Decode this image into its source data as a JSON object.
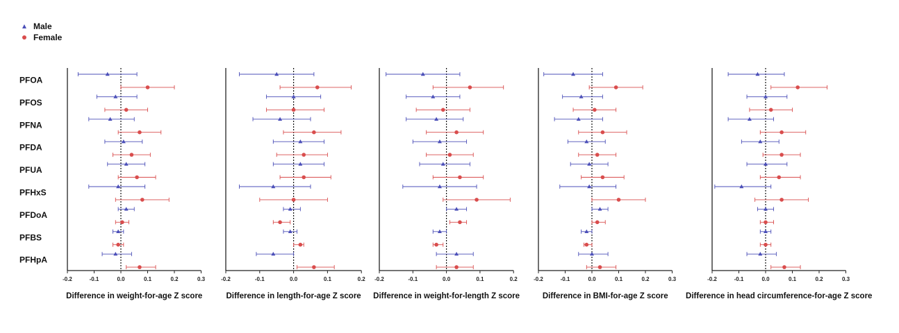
{
  "legend": {
    "male_label": "Male",
    "female_label": "Female"
  },
  "colors": {
    "male": "#4b4fb8",
    "female": "#d94d4d",
    "axis": "#222222"
  },
  "chart_data": [
    {
      "type": "forest",
      "xlabel": "Difference in weight-for-age Z score",
      "xlim": [
        -0.2,
        0.3
      ],
      "xticks": [
        "-0.2",
        "-0.1",
        "0.0",
        "0.1",
        "0.2",
        "0.3"
      ],
      "categories": [
        "PFOA",
        "PFOS",
        "PFNA",
        "PFDA",
        "PFUA",
        "PFHxS",
        "PFDoA",
        "PFBS",
        "PFHpA"
      ],
      "series": [
        {
          "name": "Male",
          "marker": "triangle",
          "est": [
            -0.05,
            -0.02,
            -0.04,
            0.01,
            0.02,
            -0.01,
            0.02,
            -0.01,
            -0.02
          ],
          "lo": [
            -0.16,
            -0.09,
            -0.12,
            -0.06,
            -0.05,
            -0.12,
            -0.01,
            -0.03,
            -0.07
          ],
          "hi": [
            0.06,
            0.06,
            0.05,
            0.08,
            0.09,
            0.09,
            0.05,
            0.01,
            0.04
          ]
        },
        {
          "name": "Female",
          "marker": "circle",
          "est": [
            0.1,
            0.02,
            0.07,
            0.04,
            0.06,
            0.08,
            0.005,
            -0.01,
            0.07
          ],
          "lo": [
            0.0,
            -0.06,
            -0.01,
            -0.03,
            -0.01,
            -0.02,
            -0.02,
            -0.03,
            0.02
          ],
          "hi": [
            0.2,
            0.1,
            0.15,
            0.11,
            0.13,
            0.18,
            0.03,
            0.01,
            0.13
          ]
        }
      ]
    },
    {
      "type": "forest",
      "xlabel": "Difference in length-for-age Z score",
      "xlim": [
        -0.2,
        0.2
      ],
      "xticks": [
        "-0.2",
        "-0.1",
        "0.0",
        "0.1",
        "0.2"
      ],
      "series": [
        {
          "name": "Male",
          "marker": "triangle",
          "est": [
            -0.05,
            0.0,
            -0.04,
            0.02,
            0.02,
            -0.06,
            -0.01,
            -0.01,
            -0.06
          ],
          "lo": [
            -0.16,
            -0.08,
            -0.12,
            -0.06,
            -0.06,
            -0.16,
            -0.03,
            -0.03,
            -0.11
          ],
          "hi": [
            0.06,
            0.08,
            0.05,
            0.09,
            0.09,
            0.05,
            0.02,
            0.01,
            0.0
          ]
        },
        {
          "name": "Female",
          "marker": "circle",
          "est": [
            0.07,
            0.0,
            0.06,
            0.03,
            0.03,
            0.0,
            -0.04,
            0.02,
            0.06
          ],
          "lo": [
            -0.04,
            -0.08,
            -0.03,
            -0.05,
            -0.04,
            -0.1,
            -0.06,
            0.0,
            0.01
          ],
          "hi": [
            0.17,
            0.09,
            0.14,
            0.1,
            0.11,
            0.1,
            -0.01,
            0.03,
            0.12
          ]
        }
      ]
    },
    {
      "type": "forest",
      "xlabel": "Difference in weight-for-length Z score",
      "xlim": [
        -0.2,
        0.2
      ],
      "xticks": [
        "-0.2",
        "-0.1",
        "0.0",
        "0.1",
        "0.2"
      ],
      "series": [
        {
          "name": "Male",
          "marker": "triangle",
          "est": [
            -0.07,
            -0.04,
            -0.03,
            -0.02,
            -0.01,
            -0.02,
            0.03,
            -0.02,
            0.03
          ],
          "lo": [
            -0.18,
            -0.12,
            -0.12,
            -0.1,
            -0.08,
            -0.13,
            0.0,
            -0.04,
            -0.03
          ],
          "hi": [
            0.04,
            0.04,
            0.05,
            0.06,
            0.07,
            0.09,
            0.06,
            0.0,
            0.08
          ]
        },
        {
          "name": "Female",
          "marker": "circle",
          "est": [
            0.07,
            -0.01,
            0.03,
            0.01,
            0.04,
            0.09,
            0.04,
            -0.03,
            0.03
          ],
          "lo": [
            -0.04,
            -0.09,
            -0.06,
            -0.06,
            -0.04,
            -0.01,
            0.01,
            -0.04,
            -0.03
          ],
          "hi": [
            0.17,
            0.07,
            0.11,
            0.08,
            0.11,
            0.19,
            0.06,
            -0.01,
            0.08
          ]
        }
      ]
    },
    {
      "type": "forest",
      "xlabel": "Difference in BMI-for-age Z score",
      "xlim": [
        -0.2,
        0.3
      ],
      "xticks": [
        "-0.2",
        "-0.1",
        "0.0",
        "0.1",
        "0.2",
        "0.3"
      ],
      "series": [
        {
          "name": "Male",
          "marker": "triangle",
          "est": [
            -0.07,
            -0.04,
            -0.05,
            -0.02,
            -0.01,
            -0.01,
            0.03,
            -0.02,
            0.0
          ],
          "lo": [
            -0.18,
            -0.11,
            -0.14,
            -0.09,
            -0.08,
            -0.12,
            0.0,
            -0.04,
            -0.05
          ],
          "hi": [
            0.04,
            0.04,
            0.04,
            0.05,
            0.06,
            0.09,
            0.06,
            0.0,
            0.06
          ]
        },
        {
          "name": "Female",
          "marker": "circle",
          "est": [
            0.09,
            0.01,
            0.04,
            0.02,
            0.04,
            0.1,
            0.02,
            -0.02,
            0.03
          ],
          "lo": [
            -0.01,
            -0.07,
            -0.05,
            -0.05,
            -0.04,
            0.0,
            0.0,
            -0.03,
            -0.02
          ],
          "hi": [
            0.19,
            0.09,
            0.13,
            0.09,
            0.12,
            0.2,
            0.05,
            0.0,
            0.09
          ]
        }
      ]
    },
    {
      "type": "forest",
      "xlabel": "Difference in head circumference-for-age Z score",
      "xlim": [
        -0.2,
        0.3
      ],
      "xticks": [
        "-0.2",
        "-0.1",
        "0.0",
        "0.1",
        "0.2",
        "0.3"
      ],
      "series": [
        {
          "name": "Male",
          "marker": "triangle",
          "est": [
            -0.03,
            0.0,
            -0.06,
            -0.02,
            0.0,
            -0.09,
            0.0,
            0.0,
            -0.02
          ],
          "lo": [
            -0.14,
            -0.07,
            -0.14,
            -0.09,
            -0.07,
            -0.19,
            -0.03,
            -0.02,
            -0.07
          ],
          "hi": [
            0.07,
            0.08,
            0.03,
            0.05,
            0.08,
            0.02,
            0.03,
            0.02,
            0.04
          ]
        },
        {
          "name": "Female",
          "marker": "circle",
          "est": [
            0.12,
            0.02,
            0.06,
            0.06,
            0.05,
            0.06,
            0.0,
            0.0,
            0.07
          ],
          "lo": [
            0.02,
            -0.06,
            -0.02,
            -0.01,
            -0.02,
            -0.04,
            -0.02,
            -0.02,
            0.02
          ],
          "hi": [
            0.23,
            0.1,
            0.15,
            0.13,
            0.13,
            0.16,
            0.03,
            0.02,
            0.13
          ]
        }
      ]
    }
  ]
}
